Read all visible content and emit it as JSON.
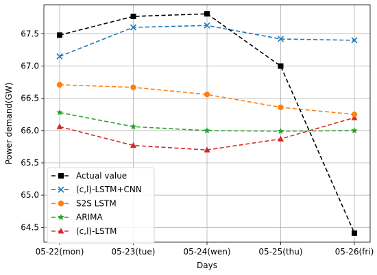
{
  "chart_data": {
    "type": "line",
    "title": "",
    "xlabel": "Days",
    "ylabel": "Power demand(GW)",
    "categories": [
      "05-22(mon)",
      "05-23(tue)",
      "05-24(wen)",
      "05-25(thu)",
      "05-26(fri)"
    ],
    "ylim": [
      64.27,
      67.95
    ],
    "yticks": [
      64.5,
      65.0,
      65.5,
      66.0,
      66.5,
      67.0,
      67.5
    ],
    "ytick_labels": [
      "64.5",
      "65.0",
      "65.5",
      "66.0",
      "66.5",
      "67.0",
      "67.5"
    ],
    "grid": true,
    "legend_position": "lower-left",
    "series": [
      {
        "name": "Actual value",
        "values": [
          67.48,
          67.77,
          67.81,
          67.0,
          64.41
        ],
        "color": "#000000",
        "marker": "square"
      },
      {
        "name": "(c,l)-LSTM+CNN",
        "values": [
          67.15,
          67.6,
          67.63,
          67.42,
          67.4
        ],
        "color": "#1f77b4",
        "marker": "x"
      },
      {
        "name": "S2S LSTM",
        "values": [
          66.71,
          66.67,
          66.56,
          66.36,
          66.25
        ],
        "color": "#ff7f0e",
        "marker": "circle"
      },
      {
        "name": "ARIMA",
        "values": [
          66.28,
          66.06,
          66.0,
          65.99,
          66.0
        ],
        "color": "#2ca02c",
        "marker": "star"
      },
      {
        "name": "(c,l)-LSTM",
        "values": [
          66.06,
          65.77,
          65.7,
          65.87,
          66.2
        ],
        "color": "#d62728",
        "marker": "triangle"
      }
    ]
  }
}
